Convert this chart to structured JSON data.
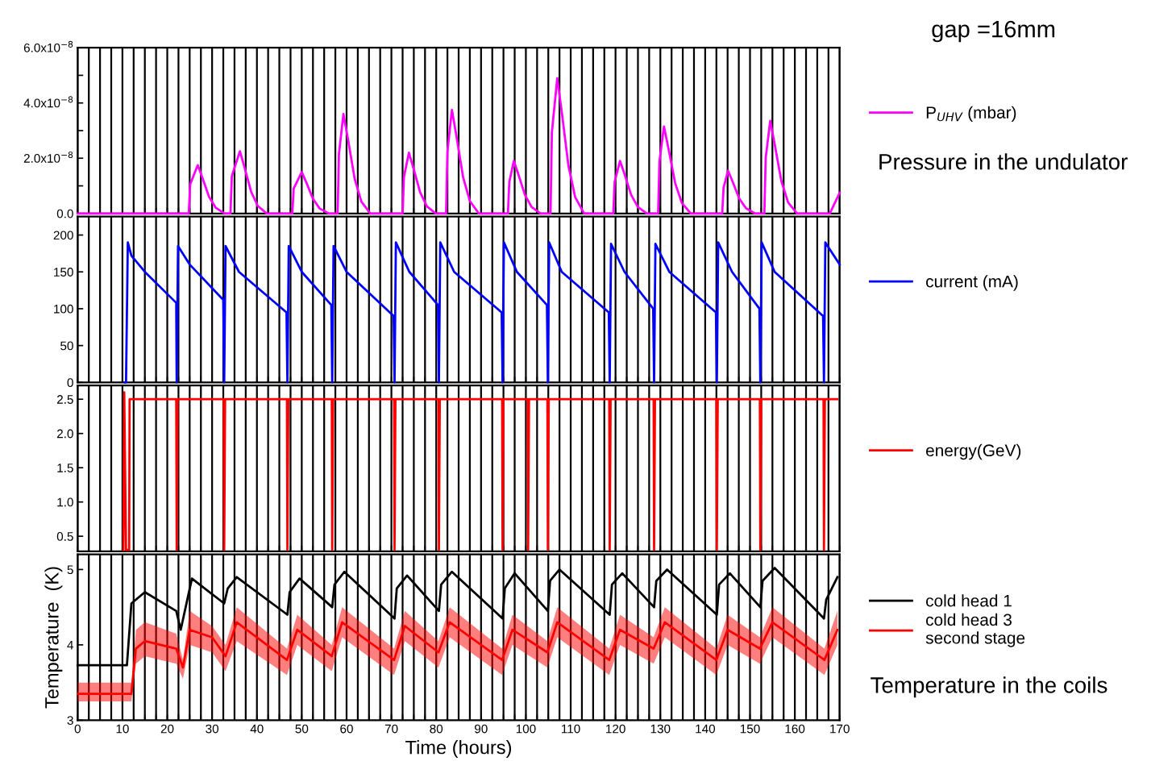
{
  "chart_data": [
    {
      "type": "line",
      "annotations": [
        "gap =16mm",
        "Pressure in the undulator"
      ],
      "legend": "right",
      "grid": "x",
      "tick_labels": "y",
      "xlim": [
        0,
        170
      ],
      "xticks": [
        0,
        {
          "value": 2.5,
          "label": null
        },
        {
          "value": 5,
          "label": null
        },
        {
          "value": 7.5,
          "label": null
        },
        10,
        {
          "value": 12.5,
          "label": null
        },
        {
          "value": 15,
          "label": null
        },
        {
          "value": 17.5,
          "label": null
        },
        20,
        {
          "value": 22.5,
          "label": null
        },
        {
          "value": 25,
          "label": null
        },
        {
          "value": 27.5,
          "label": null
        },
        30,
        {
          "value": 32.5,
          "label": null
        },
        {
          "value": 35,
          "label": null
        },
        {
          "value": 37.5,
          "label": null
        },
        40,
        {
          "value": 42.5,
          "label": null
        },
        {
          "value": 45,
          "label": null
        },
        {
          "value": 47.5,
          "label": null
        },
        50,
        {
          "value": 52.5,
          "label": null
        },
        {
          "value": 55,
          "label": null
        },
        {
          "value": 57.5,
          "label": null
        },
        60,
        {
          "value": 62.5,
          "label": null
        },
        {
          "value": 65,
          "label": null
        },
        {
          "value": 67.5,
          "label": null
        },
        70,
        {
          "value": 72.5,
          "label": null
        },
        {
          "value": 75,
          "label": null
        },
        {
          "value": 77.5,
          "label": null
        },
        80,
        {
          "value": 82.5,
          "label": null
        },
        {
          "value": 85,
          "label": null
        },
        {
          "value": 87.5,
          "label": null
        },
        90,
        {
          "value": 92.5,
          "label": null
        },
        {
          "value": 95,
          "label": null
        },
        {
          "value": 97.5,
          "label": null
        },
        100,
        {
          "value": 102.5,
          "label": null
        },
        {
          "value": 105,
          "label": null
        },
        {
          "value": 107.5,
          "label": null
        },
        110,
        {
          "value": 112.5,
          "label": null
        },
        {
          "value": 115,
          "label": null
        },
        {
          "value": 117.5,
          "label": null
        },
        120,
        {
          "value": 122.5,
          "label": null
        },
        {
          "value": 125,
          "label": null
        },
        {
          "value": 127.5,
          "label": null
        },
        130,
        {
          "value": 132.5,
          "label": null
        },
        {
          "value": 135,
          "label": null
        },
        {
          "value": 137.5,
          "label": null
        },
        140,
        {
          "value": 142.5,
          "label": null
        },
        {
          "value": 145,
          "label": null
        },
        {
          "value": 147.5,
          "label": null
        },
        150,
        {
          "value": 152.5,
          "label": null
        },
        {
          "value": 155,
          "label": null
        },
        {
          "value": 157.5,
          "label": null
        },
        160,
        {
          "value": 162.5,
          "label": null
        },
        {
          "value": 165,
          "label": null
        },
        {
          "value": 167.5,
          "label": null
        },
        170
      ],
      "ylim": [
        0,
        6e-08
      ],
      "yticks": [
        {
          "value": 0,
          "label": "0.0"
        },
        {
          "value": 1e-08,
          "label": null
        },
        {
          "value": 2e-08,
          "label": "2.0x10$^{−8}$"
        },
        {
          "value": 3e-08,
          "label": null
        },
        {
          "value": 4e-08,
          "label": "4.0x10$^{−8}$"
        },
        {
          "value": 5e-08,
          "label": null
        },
        {
          "value": 6e-08,
          "label": "6.0x10$^{−8}$"
        }
      ],
      "series": [
        {
          "name": "P$_{UHV}$ (mbar)",
          "color": "#ff00ff",
          "x": [
            0,
            24.8,
            25.1,
            26.8,
            27.8,
            29.3,
            30.8,
            32.8,
            34.1,
            34.4,
            36.2,
            37.2,
            38.7,
            40.2,
            42.2,
            47.9,
            48.2,
            50,
            51,
            52.5,
            54,
            56,
            58,
            58.3,
            59.3,
            60.3,
            61.8,
            63.3,
            65.3,
            72.5,
            72.8,
            73.9,
            74.9,
            76.4,
            77.9,
            79.9,
            82.2,
            82.5,
            83.5,
            84.5,
            86,
            87.5,
            89.5,
            96,
            96.3,
            97.3,
            98.3,
            99.8,
            101.3,
            103.3,
            105.5,
            105.8,
            107,
            108,
            109.5,
            111,
            113,
            119.5,
            119.8,
            121,
            122,
            123.5,
            125,
            127,
            129.5,
            129.8,
            130.8,
            131.8,
            133.3,
            134.8,
            136.8,
            143.8,
            144.1,
            145.1,
            146.1,
            147.6,
            149.1,
            151.1,
            153.2,
            153.5,
            154.5,
            155.5,
            157,
            158.5,
            160.5,
            167.8,
            170
          ],
          "values": [
            0,
            0,
            1.05e-08,
            1.75e-08,
            1.31e-08,
            6.1e-09,
            2.1e-09,
            0,
            0,
            1.35e-08,
            2.25e-08,
            1.69e-08,
            7.9e-09,
            2.7e-09,
            0,
            0,
            9e-09,
            1.5e-08,
            1.13e-08,
            5.3e-09,
            1.8e-09,
            0,
            0,
            2.16e-08,
            3.6e-08,
            2.7e-08,
            1.26e-08,
            4.3e-09,
            0,
            0,
            1.32e-08,
            2.2e-08,
            1.65e-08,
            7.7e-09,
            2.6e-09,
            0,
            0,
            2.25e-08,
            3.75e-08,
            2.81e-08,
            1.31e-08,
            4.5e-09,
            0,
            0,
            1.14e-08,
            1.9e-08,
            1.43e-08,
            6.7e-09,
            2.3e-09,
            0,
            0,
            2.94e-08,
            4.9e-08,
            3.68e-08,
            1.72e-08,
            5.9e-09,
            0,
            0,
            1.14e-08,
            1.9e-08,
            1.43e-08,
            6.7e-09,
            2.3e-09,
            0,
            0,
            1.89e-08,
            3.15e-08,
            2.36e-08,
            1.1e-08,
            3.8e-09,
            0,
            0,
            9.3e-09,
            1.55e-08,
            1.16e-08,
            5.4e-09,
            1.9e-09,
            0,
            0,
            2.01e-08,
            3.35e-08,
            2.51e-08,
            1.17e-08,
            4e-09,
            0,
            0,
            7.5e-09
          ]
        }
      ]
    },
    {
      "type": "line",
      "legend": "right",
      "grid": "x",
      "tick_labels": "y",
      "xlim": [
        0,
        170
      ],
      "xticks": [
        0,
        {
          "value": 2.5,
          "label": null
        },
        {
          "value": 5,
          "label": null
        },
        {
          "value": 7.5,
          "label": null
        },
        10,
        {
          "value": 12.5,
          "label": null
        },
        {
          "value": 15,
          "label": null
        },
        {
          "value": 17.5,
          "label": null
        },
        20,
        {
          "value": 22.5,
          "label": null
        },
        {
          "value": 25,
          "label": null
        },
        {
          "value": 27.5,
          "label": null
        },
        30,
        {
          "value": 32.5,
          "label": null
        },
        {
          "value": 35,
          "label": null
        },
        {
          "value": 37.5,
          "label": null
        },
        40,
        {
          "value": 42.5,
          "label": null
        },
        {
          "value": 45,
          "label": null
        },
        {
          "value": 47.5,
          "label": null
        },
        50,
        {
          "value": 52.5,
          "label": null
        },
        {
          "value": 55,
          "label": null
        },
        {
          "value": 57.5,
          "label": null
        },
        60,
        {
          "value": 62.5,
          "label": null
        },
        {
          "value": 65,
          "label": null
        },
        {
          "value": 67.5,
          "label": null
        },
        70,
        {
          "value": 72.5,
          "label": null
        },
        {
          "value": 75,
          "label": null
        },
        {
          "value": 77.5,
          "label": null
        },
        80,
        {
          "value": 82.5,
          "label": null
        },
        {
          "value": 85,
          "label": null
        },
        {
          "value": 87.5,
          "label": null
        },
        90,
        {
          "value": 92.5,
          "label": null
        },
        {
          "value": 95,
          "label": null
        },
        {
          "value": 97.5,
          "label": null
        },
        100,
        {
          "value": 102.5,
          "label": null
        },
        {
          "value": 105,
          "label": null
        },
        {
          "value": 107.5,
          "label": null
        },
        110,
        {
          "value": 112.5,
          "label": null
        },
        {
          "value": 115,
          "label": null
        },
        {
          "value": 117.5,
          "label": null
        },
        120,
        {
          "value": 122.5,
          "label": null
        },
        {
          "value": 125,
          "label": null
        },
        {
          "value": 127.5,
          "label": null
        },
        130,
        {
          "value": 132.5,
          "label": null
        },
        {
          "value": 135,
          "label": null
        },
        {
          "value": 137.5,
          "label": null
        },
        140,
        {
          "value": 142.5,
          "label": null
        },
        {
          "value": 145,
          "label": null
        },
        {
          "value": 147.5,
          "label": null
        },
        150,
        {
          "value": 152.5,
          "label": null
        },
        {
          "value": 155,
          "label": null
        },
        {
          "value": 157.5,
          "label": null
        },
        160,
        {
          "value": 162.5,
          "label": null
        },
        {
          "value": 165,
          "label": null
        },
        {
          "value": 167.5,
          "label": null
        },
        170
      ],
      "ylim": [
        0,
        225
      ],
      "yticks": [
        0,
        50,
        100,
        150,
        200
      ],
      "series": [
        {
          "name": "current (mA)",
          "color": "#0000ff",
          "x": [
            10.5,
            10.8,
            11.2,
            12,
            15,
            22,
            22.1,
            22.4,
            25,
            32.5,
            32.7,
            33,
            36,
            46.6,
            46.8,
            47.1,
            50,
            56.6,
            56.8,
            57.1,
            60,
            70.5,
            70.7,
            71,
            74,
            80.4,
            80.6,
            80.9,
            84,
            94.6,
            94.8,
            95.1,
            98,
            104.7,
            104.9,
            105.2,
            108,
            118.5,
            118.7,
            119,
            122,
            128.4,
            128.6,
            128.9,
            132,
            142.4,
            142.6,
            142.9,
            146,
            152.1,
            152.3,
            152.6,
            155.5,
            166.3,
            166.5,
            166.8,
            170
          ],
          "values": [
            0,
            0,
            190,
            172,
            150,
            108,
            0,
            185,
            160,
            112,
            0,
            185,
            150,
            95,
            0,
            185,
            150,
            105,
            0,
            185,
            150,
            90,
            0,
            190,
            150,
            105,
            0,
            190,
            150,
            95,
            0,
            190,
            150,
            105,
            0,
            190,
            150,
            95,
            0,
            188,
            150,
            100,
            0,
            188,
            150,
            95,
            0,
            190,
            150,
            100,
            0,
            190,
            150,
            90,
            0,
            190,
            160
          ]
        }
      ]
    },
    {
      "type": "line",
      "legend": "right",
      "grid": "x",
      "tick_labels": "y",
      "xlim": [
        0,
        170
      ],
      "xticks": [
        0,
        {
          "value": 2.5,
          "label": null
        },
        {
          "value": 5,
          "label": null
        },
        {
          "value": 7.5,
          "label": null
        },
        10,
        {
          "value": 12.5,
          "label": null
        },
        {
          "value": 15,
          "label": null
        },
        {
          "value": 17.5,
          "label": null
        },
        20,
        {
          "value": 22.5,
          "label": null
        },
        {
          "value": 25,
          "label": null
        },
        {
          "value": 27.5,
          "label": null
        },
        30,
        {
          "value": 32.5,
          "label": null
        },
        {
          "value": 35,
          "label": null
        },
        {
          "value": 37.5,
          "label": null
        },
        40,
        {
          "value": 42.5,
          "label": null
        },
        {
          "value": 45,
          "label": null
        },
        {
          "value": 47.5,
          "label": null
        },
        50,
        {
          "value": 52.5,
          "label": null
        },
        {
          "value": 55,
          "label": null
        },
        {
          "value": 57.5,
          "label": null
        },
        60,
        {
          "value": 62.5,
          "label": null
        },
        {
          "value": 65,
          "label": null
        },
        {
          "value": 67.5,
          "label": null
        },
        70,
        {
          "value": 72.5,
          "label": null
        },
        {
          "value": 75,
          "label": null
        },
        {
          "value": 77.5,
          "label": null
        },
        80,
        {
          "value": 82.5,
          "label": null
        },
        {
          "value": 85,
          "label": null
        },
        {
          "value": 87.5,
          "label": null
        },
        90,
        {
          "value": 92.5,
          "label": null
        },
        {
          "value": 95,
          "label": null
        },
        {
          "value": 97.5,
          "label": null
        },
        100,
        {
          "value": 102.5,
          "label": null
        },
        {
          "value": 105,
          "label": null
        },
        {
          "value": 107.5,
          "label": null
        },
        110,
        {
          "value": 112.5,
          "label": null
        },
        {
          "value": 115,
          "label": null
        },
        {
          "value": 117.5,
          "label": null
        },
        120,
        {
          "value": 122.5,
          "label": null
        },
        {
          "value": 125,
          "label": null
        },
        {
          "value": 127.5,
          "label": null
        },
        130,
        {
          "value": 132.5,
          "label": null
        },
        {
          "value": 135,
          "label": null
        },
        {
          "value": 137.5,
          "label": null
        },
        140,
        {
          "value": 142.5,
          "label": null
        },
        {
          "value": 145,
          "label": null
        },
        {
          "value": 147.5,
          "label": null
        },
        150,
        {
          "value": 152.5,
          "label": null
        },
        {
          "value": 155,
          "label": null
        },
        {
          "value": 157.5,
          "label": null
        },
        160,
        {
          "value": 162.5,
          "label": null
        },
        {
          "value": 165,
          "label": null
        },
        {
          "value": 167.5,
          "label": null
        },
        170
      ],
      "ylim": [
        0.28,
        2.7
      ],
      "yticks": [
        0.5,
        {
          "value": 1,
          "label": "1.0"
        },
        1.5,
        {
          "value": 2,
          "label": "2.0"
        },
        2.5
      ],
      "series": [
        {
          "name": "energy(GeV)",
          "color": "#ff0000",
          "x": [
            10.2,
            10.4,
            10.8,
            11.5,
            11.6,
            22.0,
            22.1,
            22.3,
            32.6,
            32.7,
            32.9,
            46.7,
            46.8,
            47.0,
            56.7,
            56.8,
            57.0,
            70.6,
            70.7,
            70.9,
            80.5,
            80.6,
            80.8,
            94.7,
            94.8,
            95.0,
            100.4,
            100.5,
            100.7,
            104.8,
            104.9,
            105.1,
            118.6,
            118.7,
            118.9,
            128.5,
            128.6,
            128.8,
            142.5,
            142.6,
            142.8,
            152.2,
            152.3,
            152.5,
            166.4,
            166.5,
            166.7,
            169.5
          ],
          "values": [
            0.3,
            2.6,
            0.3,
            0.3,
            2.5,
            2.5,
            0.3,
            2.5,
            2.5,
            0.3,
            2.5,
            2.5,
            0.3,
            2.5,
            2.5,
            0.3,
            2.5,
            2.5,
            0.3,
            2.5,
            2.5,
            0.3,
            2.5,
            2.5,
            0.3,
            2.5,
            2.5,
            0.3,
            2.5,
            2.5,
            0.3,
            2.5,
            2.5,
            0.3,
            2.5,
            2.5,
            0.3,
            2.5,
            2.5,
            0.3,
            2.5,
            2.5,
            0.3,
            2.5,
            2.5,
            0.3,
            2.5,
            2.5
          ]
        }
      ]
    },
    {
      "type": "line",
      "annotations": [
        "Temperature in the coils"
      ],
      "legend": "right",
      "grid": "x",
      "xlabel": "Time (hours)",
      "ylabel": "Temperature  (K)",
      "xlim": [
        0,
        170
      ],
      "xticks": [
        0,
        {
          "value": 2.5,
          "label": null
        },
        {
          "value": 5,
          "label": null
        },
        {
          "value": 7.5,
          "label": null
        },
        10,
        {
          "value": 12.5,
          "label": null
        },
        {
          "value": 15,
          "label": null
        },
        {
          "value": 17.5,
          "label": null
        },
        20,
        {
          "value": 22.5,
          "label": null
        },
        {
          "value": 25,
          "label": null
        },
        {
          "value": 27.5,
          "label": null
        },
        30,
        {
          "value": 32.5,
          "label": null
        },
        {
          "value": 35,
          "label": null
        },
        {
          "value": 37.5,
          "label": null
        },
        40,
        {
          "value": 42.5,
          "label": null
        },
        {
          "value": 45,
          "label": null
        },
        {
          "value": 47.5,
          "label": null
        },
        50,
        {
          "value": 52.5,
          "label": null
        },
        {
          "value": 55,
          "label": null
        },
        {
          "value": 57.5,
          "label": null
        },
        60,
        {
          "value": 62.5,
          "label": null
        },
        {
          "value": 65,
          "label": null
        },
        {
          "value": 67.5,
          "label": null
        },
        70,
        {
          "value": 72.5,
          "label": null
        },
        {
          "value": 75,
          "label": null
        },
        {
          "value": 77.5,
          "label": null
        },
        80,
        {
          "value": 82.5,
          "label": null
        },
        {
          "value": 85,
          "label": null
        },
        {
          "value": 87.5,
          "label": null
        },
        90,
        {
          "value": 92.5,
          "label": null
        },
        {
          "value": 95,
          "label": null
        },
        {
          "value": 97.5,
          "label": null
        },
        100,
        {
          "value": 102.5,
          "label": null
        },
        {
          "value": 105,
          "label": null
        },
        {
          "value": 107.5,
          "label": null
        },
        110,
        {
          "value": 112.5,
          "label": null
        },
        {
          "value": 115,
          "label": null
        },
        {
          "value": 117.5,
          "label": null
        },
        120,
        {
          "value": 122.5,
          "label": null
        },
        {
          "value": 125,
          "label": null
        },
        {
          "value": 127.5,
          "label": null
        },
        130,
        {
          "value": 132.5,
          "label": null
        },
        {
          "value": 135,
          "label": null
        },
        {
          "value": 137.5,
          "label": null
        },
        140,
        {
          "value": 142.5,
          "label": null
        },
        {
          "value": 145,
          "label": null
        },
        {
          "value": 147.5,
          "label": null
        },
        150,
        {
          "value": 152.5,
          "label": null
        },
        {
          "value": 155,
          "label": null
        },
        {
          "value": 157.5,
          "label": null
        },
        160,
        {
          "value": 162.5,
          "label": null
        },
        {
          "value": 165,
          "label": null
        },
        {
          "value": 167.5,
          "label": null
        },
        170
      ],
      "ylim": [
        3,
        5.2
      ],
      "yticks": [
        3,
        4,
        5
      ],
      "series": [
        {
          "name": "cold head 1",
          "color": "#000000",
          "x": [
            0,
            11,
            12,
            15,
            22,
            23,
            25.5,
            32.7,
            33.5,
            35.5,
            46.8,
            47.3,
            49.5,
            56.8,
            57.3,
            59.5,
            70.7,
            71.2,
            73.5,
            80.6,
            81.1,
            83.5,
            94.8,
            95.3,
            97.5,
            104.9,
            105.4,
            107.5,
            118.7,
            119.2,
            121.5,
            128.6,
            129.1,
            131.5,
            142.6,
            143.1,
            145.5,
            152.3,
            152.8,
            155.5,
            166.5,
            167,
            169.5
          ],
          "values": [
            3.73,
            3.73,
            4.55,
            4.7,
            4.45,
            4.2,
            4.88,
            4.55,
            4.75,
            4.9,
            4.4,
            4.7,
            4.88,
            4.5,
            4.8,
            4.97,
            4.35,
            4.75,
            4.92,
            4.45,
            4.8,
            4.97,
            4.35,
            4.75,
            4.95,
            4.45,
            4.85,
            5.0,
            4.4,
            4.8,
            4.95,
            4.5,
            4.85,
            5.0,
            4.4,
            4.8,
            4.95,
            4.5,
            4.85,
            5.02,
            4.35,
            4.6,
            4.9
          ]
        },
        {
          "name": "cold head 3\nsecond stage",
          "color": "#ff0000",
          "x": [
            0,
            12,
            13,
            15,
            22,
            23.5,
            25,
            30,
            33,
            35.5,
            46.7,
            49,
            56.7,
            59,
            70.6,
            73,
            80.5,
            83,
            94.7,
            97,
            104.8,
            107,
            118.6,
            121,
            128.5,
            131,
            142.5,
            145,
            152.2,
            155,
            166.6,
            169.5
          ],
          "values": [
            3.35,
            3.35,
            3.95,
            4.05,
            3.95,
            3.7,
            4.2,
            4.1,
            3.85,
            4.3,
            3.8,
            4.2,
            3.85,
            4.3,
            3.8,
            4.25,
            3.9,
            4.3,
            3.8,
            4.2,
            3.9,
            4.3,
            3.8,
            4.2,
            3.95,
            4.3,
            3.8,
            4.2,
            3.95,
            4.3,
            3.8,
            4.2
          ],
          "lower": [
            3.25,
            3.25,
            3.75,
            3.85,
            3.75,
            3.55,
            4.0,
            3.9,
            3.65,
            4.05,
            3.6,
            4.0,
            3.65,
            4.1,
            3.6,
            4.05,
            3.7,
            4.1,
            3.6,
            4.0,
            3.7,
            4.1,
            3.6,
            4.0,
            3.75,
            4.1,
            3.6,
            4.0,
            3.75,
            4.1,
            3.6,
            4.0
          ],
          "upper": [
            3.5,
            3.5,
            4.2,
            4.3,
            4.15,
            3.8,
            4.45,
            4.25,
            4.0,
            4.5,
            3.95,
            4.4,
            4.0,
            4.5,
            3.95,
            4.45,
            4.05,
            4.5,
            3.95,
            4.4,
            4.05,
            4.5,
            3.95,
            4.4,
            4.1,
            4.5,
            3.95,
            4.4,
            4.1,
            4.5,
            3.95,
            4.45
          ]
        }
      ]
    }
  ]
}
